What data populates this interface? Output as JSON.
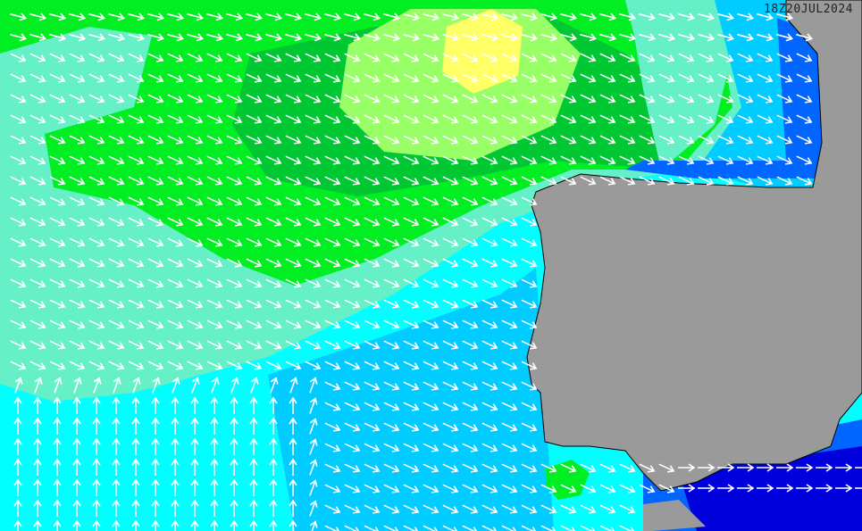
{
  "map": {
    "timestamp": "18Z20JUL2024",
    "colors": {
      "land": "#9a9a9a",
      "aquamarine": "#66f0c8",
      "green": "#00ee22",
      "dark_green": "#00c832",
      "light_green": "#99ff66",
      "yellow": "#ffff66",
      "cyan": "#00ffff",
      "sky": "#00ccff",
      "blue": "#0066ff",
      "deep_blue": "#0000dd",
      "arrow": "#ffffff"
    }
  }
}
